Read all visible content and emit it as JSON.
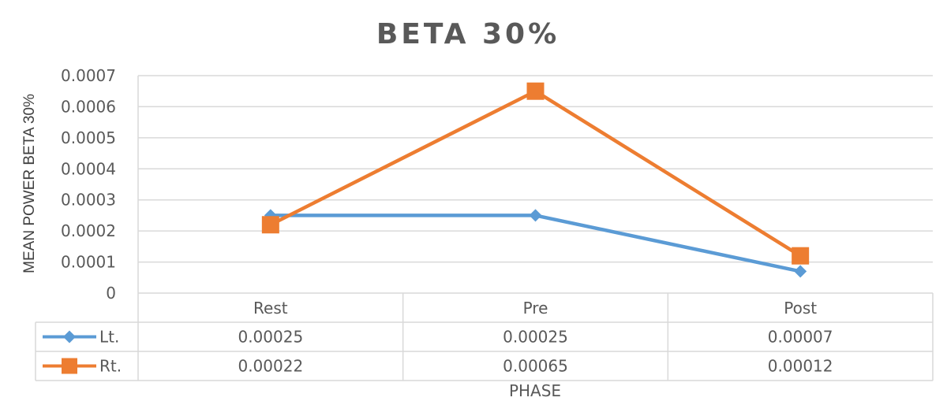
{
  "chart_data": {
    "type": "line",
    "title": "BETA 30%",
    "xlabel": "PHASE",
    "ylabel": "MEAN POWER BETA 30%",
    "categories": [
      "Rest",
      "Pre",
      "Post"
    ],
    "ylim": [
      0,
      0.0007
    ],
    "yticks": [
      "0",
      "0.0001",
      "0.0002",
      "0.0003",
      "0.0004",
      "0.0005",
      "0.0006",
      "0.0007"
    ],
    "grid": true,
    "legend": "data-table",
    "series": [
      {
        "name": "Lt.",
        "values": [
          0.00025,
          0.00025,
          7e-05
        ],
        "labels": [
          "0.00025",
          "0.00025",
          "0.00007"
        ],
        "color": "#5b9bd5",
        "marker": "diamond"
      },
      {
        "name": "Rt.",
        "values": [
          0.00022,
          0.00065,
          0.00012
        ],
        "labels": [
          "0.00022",
          "0.00065",
          "0.00012"
        ],
        "color": "#ed7d31",
        "marker": "square"
      }
    ]
  }
}
